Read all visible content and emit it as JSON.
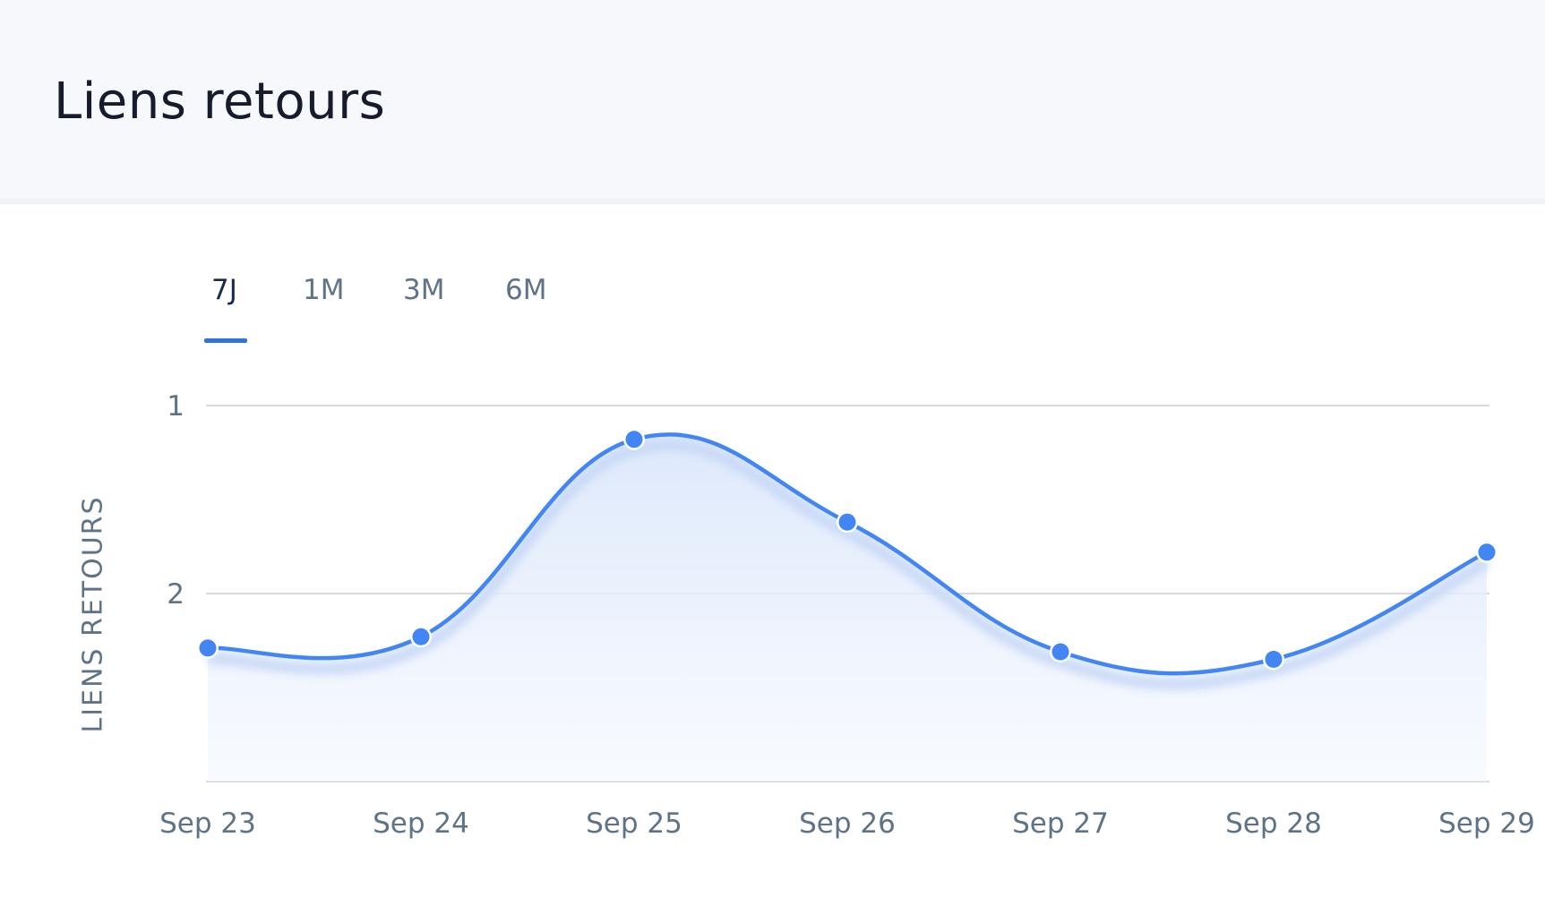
{
  "title": "Liens retours",
  "tabs": [
    {
      "label": "7J",
      "active": true
    },
    {
      "label": "1M",
      "active": false
    },
    {
      "label": "3M",
      "active": false
    },
    {
      "label": "6M",
      "active": false
    }
  ],
  "colors": {
    "line": "#4285f4",
    "fill_top": "#dde8fb",
    "grid": "#d6d9e0",
    "tab_indicator": "#2f74d8"
  },
  "chart_data": {
    "type": "area",
    "x": [
      "Sep 23",
      "Sep 24",
      "Sep 25",
      "Sep 26",
      "Sep 27",
      "Sep 28",
      "Sep 29"
    ],
    "series": [
      {
        "values": [
          2.29,
          2.23,
          1.18,
          1.62,
          2.31,
          2.35,
          1.78
        ]
      }
    ],
    "ylabel": "LIENS RETOURS",
    "xlabel": "",
    "yticks": [
      1,
      2
    ],
    "ylim": [
      1,
      3
    ],
    "y_reversed": true,
    "grid": true
  }
}
